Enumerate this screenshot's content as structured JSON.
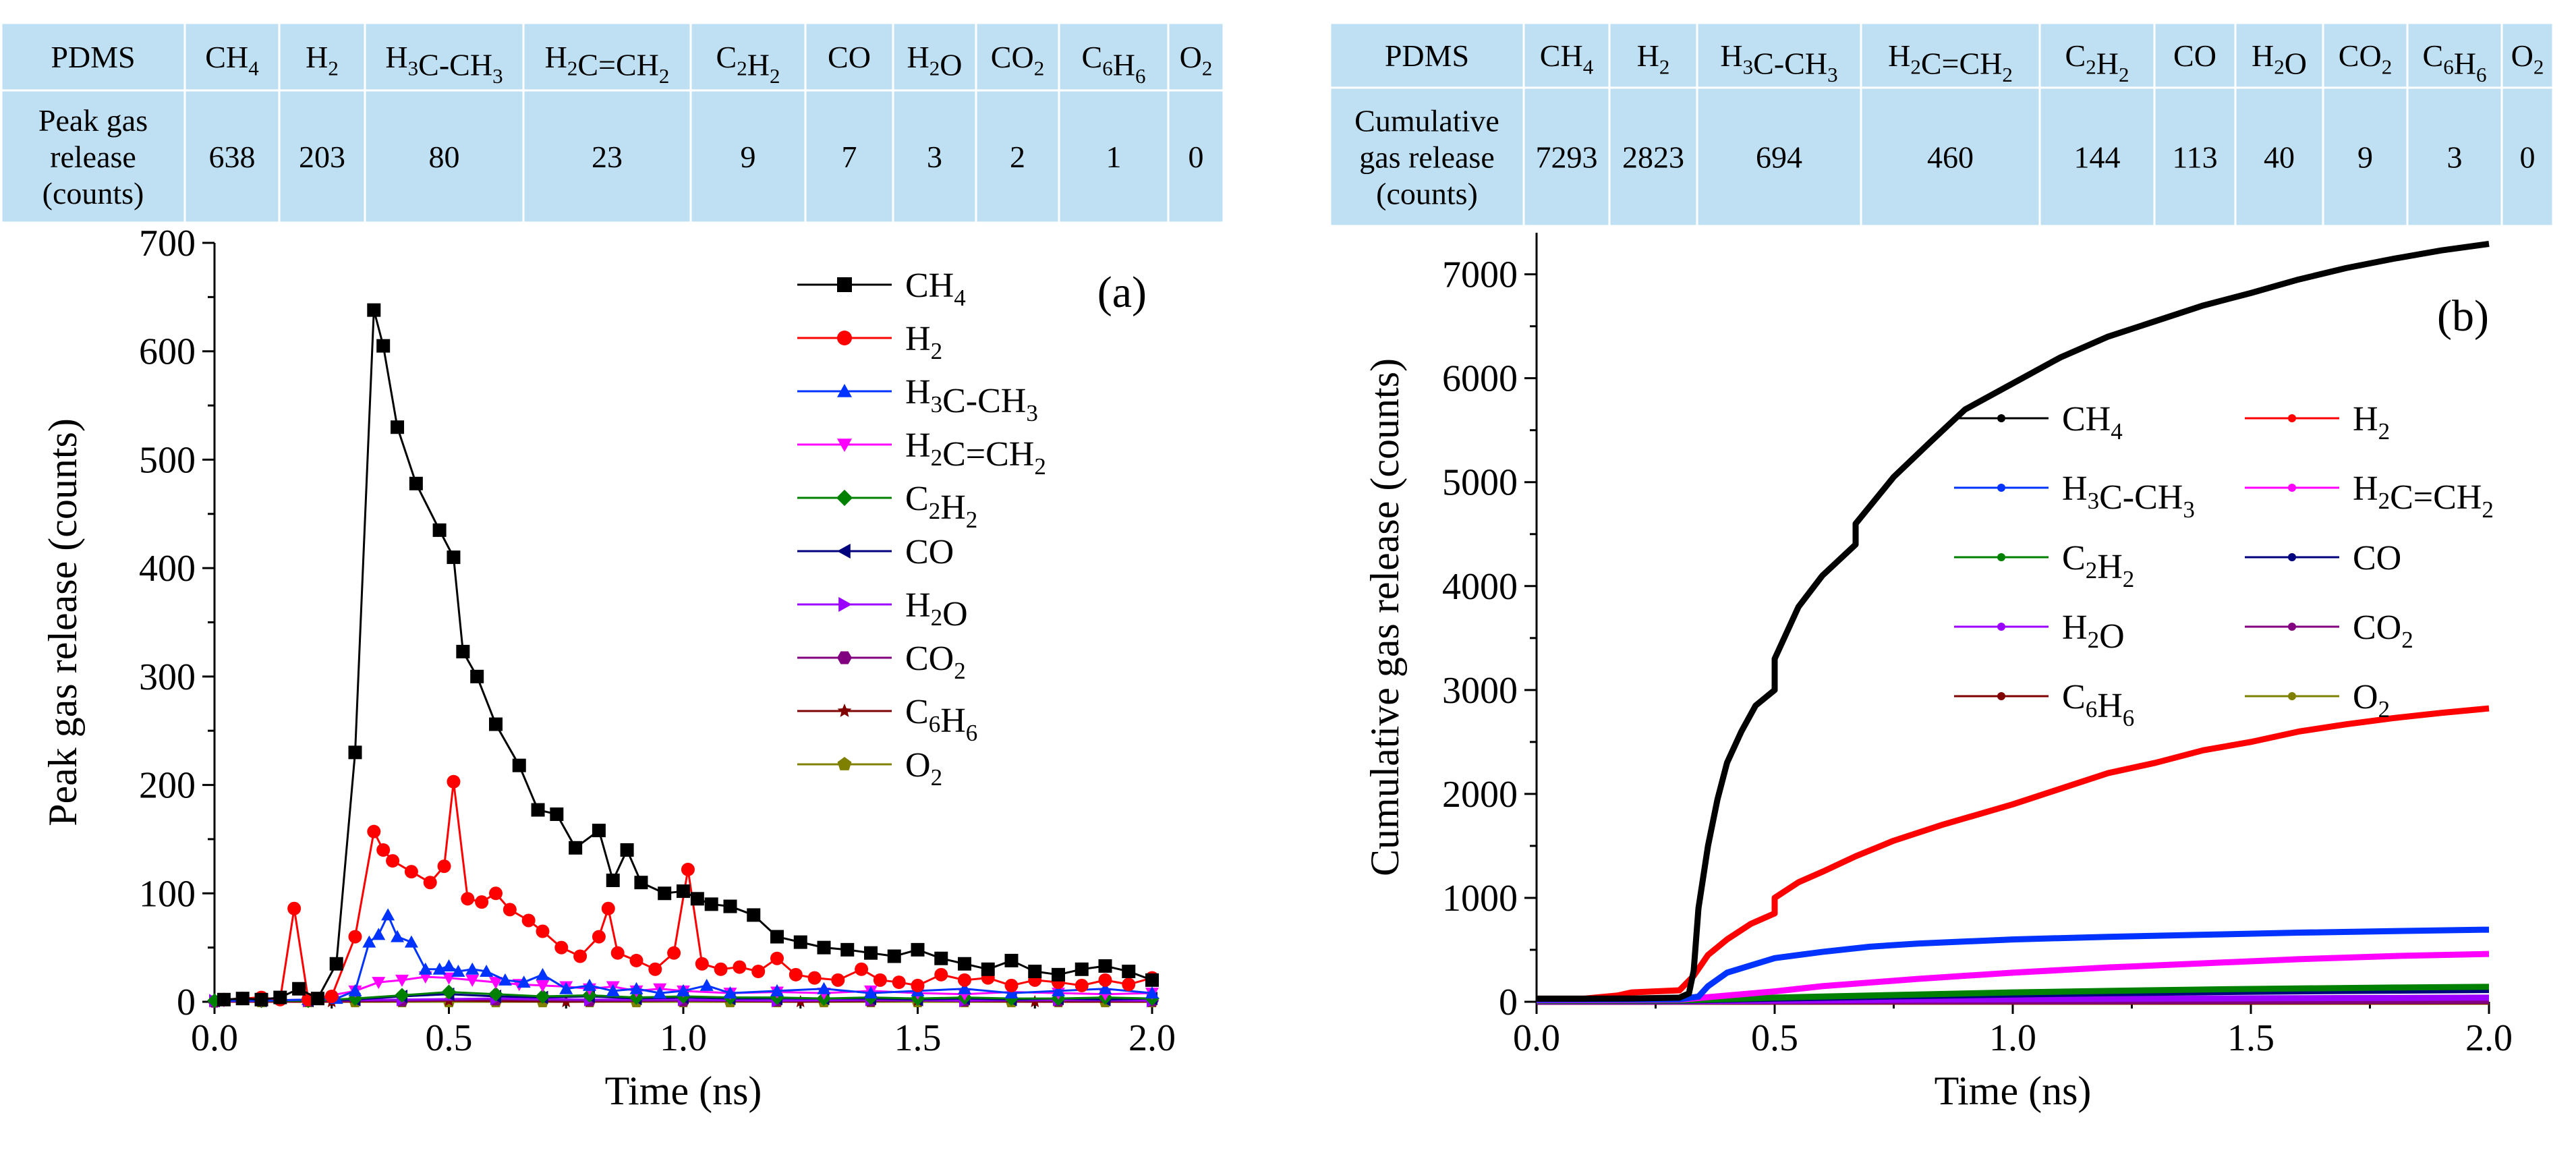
{
  "tables": [
    {
      "row_header_1": "PDMS",
      "row_header_2_lines": [
        "Peak gas",
        "release",
        "(counts)"
      ],
      "columns": [
        "CH4",
        "H2",
        "H3C-CH3",
        "H2C=CH2",
        "C2H2",
        "CO",
        "H2O",
        "CO2",
        "C6H6",
        "O2"
      ],
      "values": [
        "638",
        "203",
        "80",
        "23",
        "9",
        "7",
        "3",
        "2",
        "1",
        "0"
      ]
    },
    {
      "row_header_1": "PDMS",
      "row_header_2_lines": [
        "Cumulative",
        "gas release",
        "(counts)"
      ],
      "columns": [
        "CH4",
        "H2",
        "H3C-CH3",
        "H2C=CH2",
        "C2H2",
        "CO",
        "H2O",
        "CO2",
        "C6H6",
        "O2"
      ],
      "values": [
        "7293",
        "2823",
        "694",
        "460",
        "144",
        "113",
        "40",
        "9",
        "3",
        "0"
      ]
    }
  ],
  "colors": {
    "table_bg": "#bfe0f2",
    "CH4": "#000000",
    "H2": "#ff0000",
    "H3C-CH3": "#0033ff",
    "H2C=CH2": "#ff00ff",
    "C2H2": "#008000",
    "CO": "#00007f",
    "H2O": "#9900ff",
    "CO2": "#800080",
    "C6H6": "#800000",
    "O2": "#808000"
  },
  "chart_data": [
    {
      "type": "line",
      "panel_label": "(a)",
      "xlabel": "Time (ns)",
      "ylabel": "Peak gas release (counts)",
      "xlim": [
        0.0,
        2.0
      ],
      "ylim": [
        0,
        700
      ],
      "xticks": [
        "0.0",
        "0.5",
        "1.0",
        "1.5",
        "2.0"
      ],
      "yticks": [
        "0",
        "100",
        "200",
        "300",
        "400",
        "500",
        "600",
        "700"
      ],
      "grid": false,
      "legend_position": "top-right",
      "series": [
        {
          "name": "CH4",
          "marker": "square",
          "x": [
            0.02,
            0.06,
            0.1,
            0.14,
            0.18,
            0.22,
            0.26,
            0.3,
            0.34,
            0.36,
            0.39,
            0.43,
            0.48,
            0.51,
            0.53,
            0.56,
            0.6,
            0.65,
            0.69,
            0.73,
            0.77,
            0.82,
            0.85,
            0.88,
            0.91,
            0.96,
            1.0,
            1.03,
            1.06,
            1.1,
            1.15,
            1.2,
            1.25,
            1.3,
            1.35,
            1.4,
            1.45,
            1.5,
            1.55,
            1.6,
            1.65,
            1.7,
            1.75,
            1.8,
            1.85,
            1.9,
            1.95,
            2.0
          ],
          "y": [
            2,
            3,
            2,
            4,
            12,
            3,
            35,
            230,
            638,
            605,
            530,
            478,
            435,
            410,
            323,
            300,
            256,
            218,
            177,
            173,
            142,
            158,
            112,
            140,
            110,
            100,
            102,
            95,
            90,
            88,
            80,
            60,
            55,
            50,
            48,
            45,
            42,
            48,
            40,
            35,
            30,
            38,
            28,
            25,
            30,
            33,
            28,
            20
          ]
        },
        {
          "name": "H2",
          "marker": "circle",
          "x": [
            0.02,
            0.06,
            0.1,
            0.14,
            0.17,
            0.2,
            0.25,
            0.3,
            0.34,
            0.36,
            0.38,
            0.42,
            0.46,
            0.49,
            0.51,
            0.54,
            0.57,
            0.6,
            0.63,
            0.67,
            0.7,
            0.74,
            0.78,
            0.82,
            0.84,
            0.86,
            0.9,
            0.94,
            0.98,
            1.01,
            1.04,
            1.08,
            1.12,
            1.16,
            1.2,
            1.24,
            1.28,
            1.33,
            1.38,
            1.42,
            1.46,
            1.5,
            1.55,
            1.6,
            1.65,
            1.7,
            1.75,
            1.8,
            1.85,
            1.9,
            1.95,
            2.0
          ],
          "y": [
            2,
            3,
            4,
            2,
            86,
            2,
            5,
            60,
            157,
            140,
            130,
            120,
            110,
            125,
            203,
            95,
            92,
            100,
            85,
            75,
            65,
            50,
            42,
            60,
            86,
            45,
            38,
            30,
            45,
            122,
            35,
            30,
            32,
            28,
            40,
            25,
            22,
            20,
            30,
            20,
            18,
            15,
            25,
            20,
            22,
            15,
            20,
            18,
            15,
            20,
            16,
            22
          ]
        },
        {
          "name": "H3C-CH3",
          "marker": "triangle-up",
          "x": [
            0.02,
            0.1,
            0.2,
            0.26,
            0.3,
            0.33,
            0.35,
            0.37,
            0.39,
            0.42,
            0.45,
            0.48,
            0.5,
            0.52,
            0.55,
            0.58,
            0.62,
            0.66,
            0.7,
            0.75,
            0.8,
            0.85,
            0.9,
            0.95,
            1.0,
            1.05,
            1.1,
            1.2,
            1.3,
            1.4,
            1.5,
            1.6,
            1.7,
            1.8,
            1.9,
            2.0
          ],
          "y": [
            1,
            1,
            2,
            3,
            10,
            55,
            62,
            80,
            60,
            55,
            30,
            30,
            33,
            28,
            30,
            28,
            20,
            18,
            25,
            12,
            15,
            10,
            12,
            8,
            10,
            15,
            8,
            10,
            12,
            8,
            10,
            12,
            8,
            10,
            12,
            8
          ]
        },
        {
          "name": "H2C=CH2",
          "marker": "triangle-down",
          "x": [
            0.02,
            0.1,
            0.2,
            0.3,
            0.35,
            0.4,
            0.45,
            0.5,
            0.55,
            0.6,
            0.65,
            0.7,
            0.75,
            0.8,
            0.85,
            0.9,
            0.95,
            1.0,
            1.1,
            1.2,
            1.3,
            1.4,
            1.5,
            1.6,
            1.7,
            1.8,
            1.9,
            2.0
          ],
          "y": [
            1,
            1,
            2,
            10,
            18,
            20,
            23,
            22,
            20,
            18,
            16,
            15,
            14,
            12,
            14,
            10,
            12,
            10,
            8,
            9,
            8,
            10,
            8,
            7,
            9,
            8,
            7,
            8
          ]
        },
        {
          "name": "C2H2",
          "marker": "diamond",
          "x": [
            0.0,
            0.1,
            0.2,
            0.3,
            0.4,
            0.5,
            0.6,
            0.7,
            0.8,
            0.9,
            1.0,
            1.1,
            1.2,
            1.3,
            1.4,
            1.5,
            1.6,
            1.7,
            1.8,
            1.9,
            2.0
          ],
          "y": [
            1,
            1,
            1,
            3,
            6,
            9,
            7,
            5,
            6,
            4,
            5,
            4,
            4,
            3,
            4,
            3,
            4,
            3,
            3,
            4,
            3
          ]
        },
        {
          "name": "CO",
          "marker": "triangle-left",
          "x": [
            0.0,
            0.1,
            0.2,
            0.3,
            0.4,
            0.5,
            0.6,
            0.7,
            0.8,
            0.9,
            1.0,
            1.1,
            1.2,
            1.3,
            1.4,
            1.5,
            1.6,
            1.7,
            1.8,
            1.9,
            2.0
          ],
          "y": [
            1,
            1,
            1,
            2,
            5,
            7,
            5,
            4,
            5,
            3,
            4,
            3,
            3,
            3,
            3,
            2,
            3,
            2,
            3,
            2,
            3
          ]
        },
        {
          "name": "H2O",
          "marker": "triangle-right",
          "x": [
            0.0,
            0.2,
            0.4,
            0.6,
            0.8,
            1.0,
            1.2,
            1.4,
            1.6,
            1.8,
            2.0
          ],
          "y": [
            1,
            1,
            2,
            3,
            2,
            2,
            1,
            2,
            1,
            2,
            1
          ]
        },
        {
          "name": "CO2",
          "marker": "hexagon",
          "x": [
            0.0,
            0.2,
            0.4,
            0.6,
            0.8,
            1.0,
            1.2,
            1.4,
            1.6,
            1.8,
            2.0
          ],
          "y": [
            0,
            1,
            1,
            2,
            1,
            1,
            1,
            1,
            1,
            1,
            1
          ]
        },
        {
          "name": "C6H6",
          "marker": "star",
          "x": [
            0.0,
            0.25,
            0.5,
            0.75,
            1.0,
            1.25,
            1.5,
            1.75,
            2.0
          ],
          "y": [
            0,
            0,
            1,
            0,
            1,
            0,
            1,
            0,
            0
          ]
        },
        {
          "name": "O2",
          "marker": "pentagon",
          "x": [
            0.0,
            0.1,
            0.2,
            0.3,
            0.4,
            0.5,
            0.6,
            0.7,
            0.8,
            0.9,
            1.0,
            1.1,
            1.2,
            1.3,
            1.4,
            1.5,
            1.6,
            1.7,
            1.8,
            1.9,
            2.0
          ],
          "y": [
            0,
            0,
            0,
            0,
            0,
            0,
            0,
            0,
            0,
            0,
            0,
            0,
            0,
            0,
            0,
            0,
            0,
            0,
            0,
            0,
            0
          ]
        }
      ]
    },
    {
      "type": "line",
      "panel_label": "(b)",
      "xlabel": "Time (ns)",
      "ylabel": "Cumulative gas release (counts)",
      "xlim": [
        0.0,
        2.0
      ],
      "ylim": [
        0,
        7400
      ],
      "xticks": [
        "0.0",
        "0.5",
        "1.0",
        "1.5",
        "2.0"
      ],
      "yticks": [
        "0",
        "1000",
        "2000",
        "3000",
        "4000",
        "5000",
        "6000",
        "7000"
      ],
      "grid": false,
      "legend_position": "center (two columns)",
      "series": [
        {
          "name": "CH4",
          "x": [
            0.0,
            0.1,
            0.2,
            0.3,
            0.32,
            0.33,
            0.34,
            0.36,
            0.38,
            0.4,
            0.43,
            0.46,
            0.5,
            0.5,
            0.55,
            0.6,
            0.67,
            0.67,
            0.75,
            0.83,
            0.9,
            1.0,
            1.1,
            1.2,
            1.3,
            1.4,
            1.5,
            1.6,
            1.7,
            1.8,
            1.9,
            2.0
          ],
          "y": [
            30,
            30,
            32,
            40,
            80,
            300,
            900,
            1500,
            1950,
            2300,
            2600,
            2850,
            3000,
            3300,
            3800,
            4100,
            4400,
            4600,
            5050,
            5400,
            5700,
            5950,
            6200,
            6400,
            6550,
            6700,
            6820,
            6950,
            7060,
            7150,
            7230,
            7293
          ]
        },
        {
          "name": "H2",
          "x": [
            0.0,
            0.1,
            0.17,
            0.2,
            0.3,
            0.33,
            0.36,
            0.4,
            0.45,
            0.5,
            0.5,
            0.55,
            0.6,
            0.67,
            0.75,
            0.85,
            1.0,
            1.1,
            1.2,
            1.3,
            1.4,
            1.5,
            1.6,
            1.7,
            1.8,
            1.9,
            2.0
          ],
          "y": [
            30,
            30,
            60,
            90,
            110,
            250,
            450,
            600,
            750,
            850,
            1000,
            1150,
            1250,
            1400,
            1550,
            1700,
            1900,
            2050,
            2200,
            2300,
            2420,
            2500,
            2600,
            2670,
            2730,
            2780,
            2823
          ]
        },
        {
          "name": "H3C-CH3",
          "x": [
            0.0,
            0.3,
            0.34,
            0.36,
            0.4,
            0.45,
            0.5,
            0.6,
            0.7,
            0.8,
            1.0,
            1.2,
            1.4,
            1.6,
            1.8,
            2.0
          ],
          "y": [
            20,
            25,
            50,
            150,
            280,
            350,
            420,
            480,
            530,
            560,
            600,
            625,
            645,
            665,
            680,
            694
          ]
        },
        {
          "name": "H2C=CH2",
          "x": [
            0.0,
            0.3,
            0.4,
            0.5,
            0.6,
            0.8,
            1.0,
            1.2,
            1.4,
            1.6,
            1.8,
            2.0
          ],
          "y": [
            15,
            20,
            60,
            100,
            150,
            220,
            280,
            330,
            370,
            410,
            440,
            460
          ]
        },
        {
          "name": "C2H2",
          "x": [
            0.0,
            0.3,
            0.5,
            0.8,
            1.0,
            1.2,
            1.4,
            1.6,
            1.8,
            2.0
          ],
          "y": [
            10,
            12,
            40,
            70,
            90,
            105,
            118,
            128,
            137,
            144
          ]
        },
        {
          "name": "CO",
          "x": [
            0.0,
            0.3,
            0.5,
            0.8,
            1.0,
            1.2,
            1.4,
            1.6,
            1.8,
            2.0
          ],
          "y": [
            8,
            10,
            30,
            55,
            70,
            82,
            92,
            100,
            107,
            113
          ]
        },
        {
          "name": "H2O",
          "x": [
            0.0,
            0.3,
            0.6,
            1.0,
            1.4,
            1.8,
            2.0
          ],
          "y": [
            5,
            6,
            15,
            25,
            32,
            37,
            40
          ]
        },
        {
          "name": "CO2",
          "x": [
            0.0,
            0.5,
            1.0,
            1.5,
            2.0
          ],
          "y": [
            2,
            4,
            6,
            8,
            9
          ]
        },
        {
          "name": "C6H6",
          "x": [
            0.0,
            0.5,
            1.0,
            1.5,
            2.0
          ],
          "y": [
            0,
            1,
            2,
            2,
            3
          ]
        },
        {
          "name": "O2",
          "x": [
            0.0,
            0.5,
            1.0,
            1.5,
            2.0
          ],
          "y": [
            0,
            0,
            0,
            0,
            0
          ]
        }
      ]
    }
  ]
}
